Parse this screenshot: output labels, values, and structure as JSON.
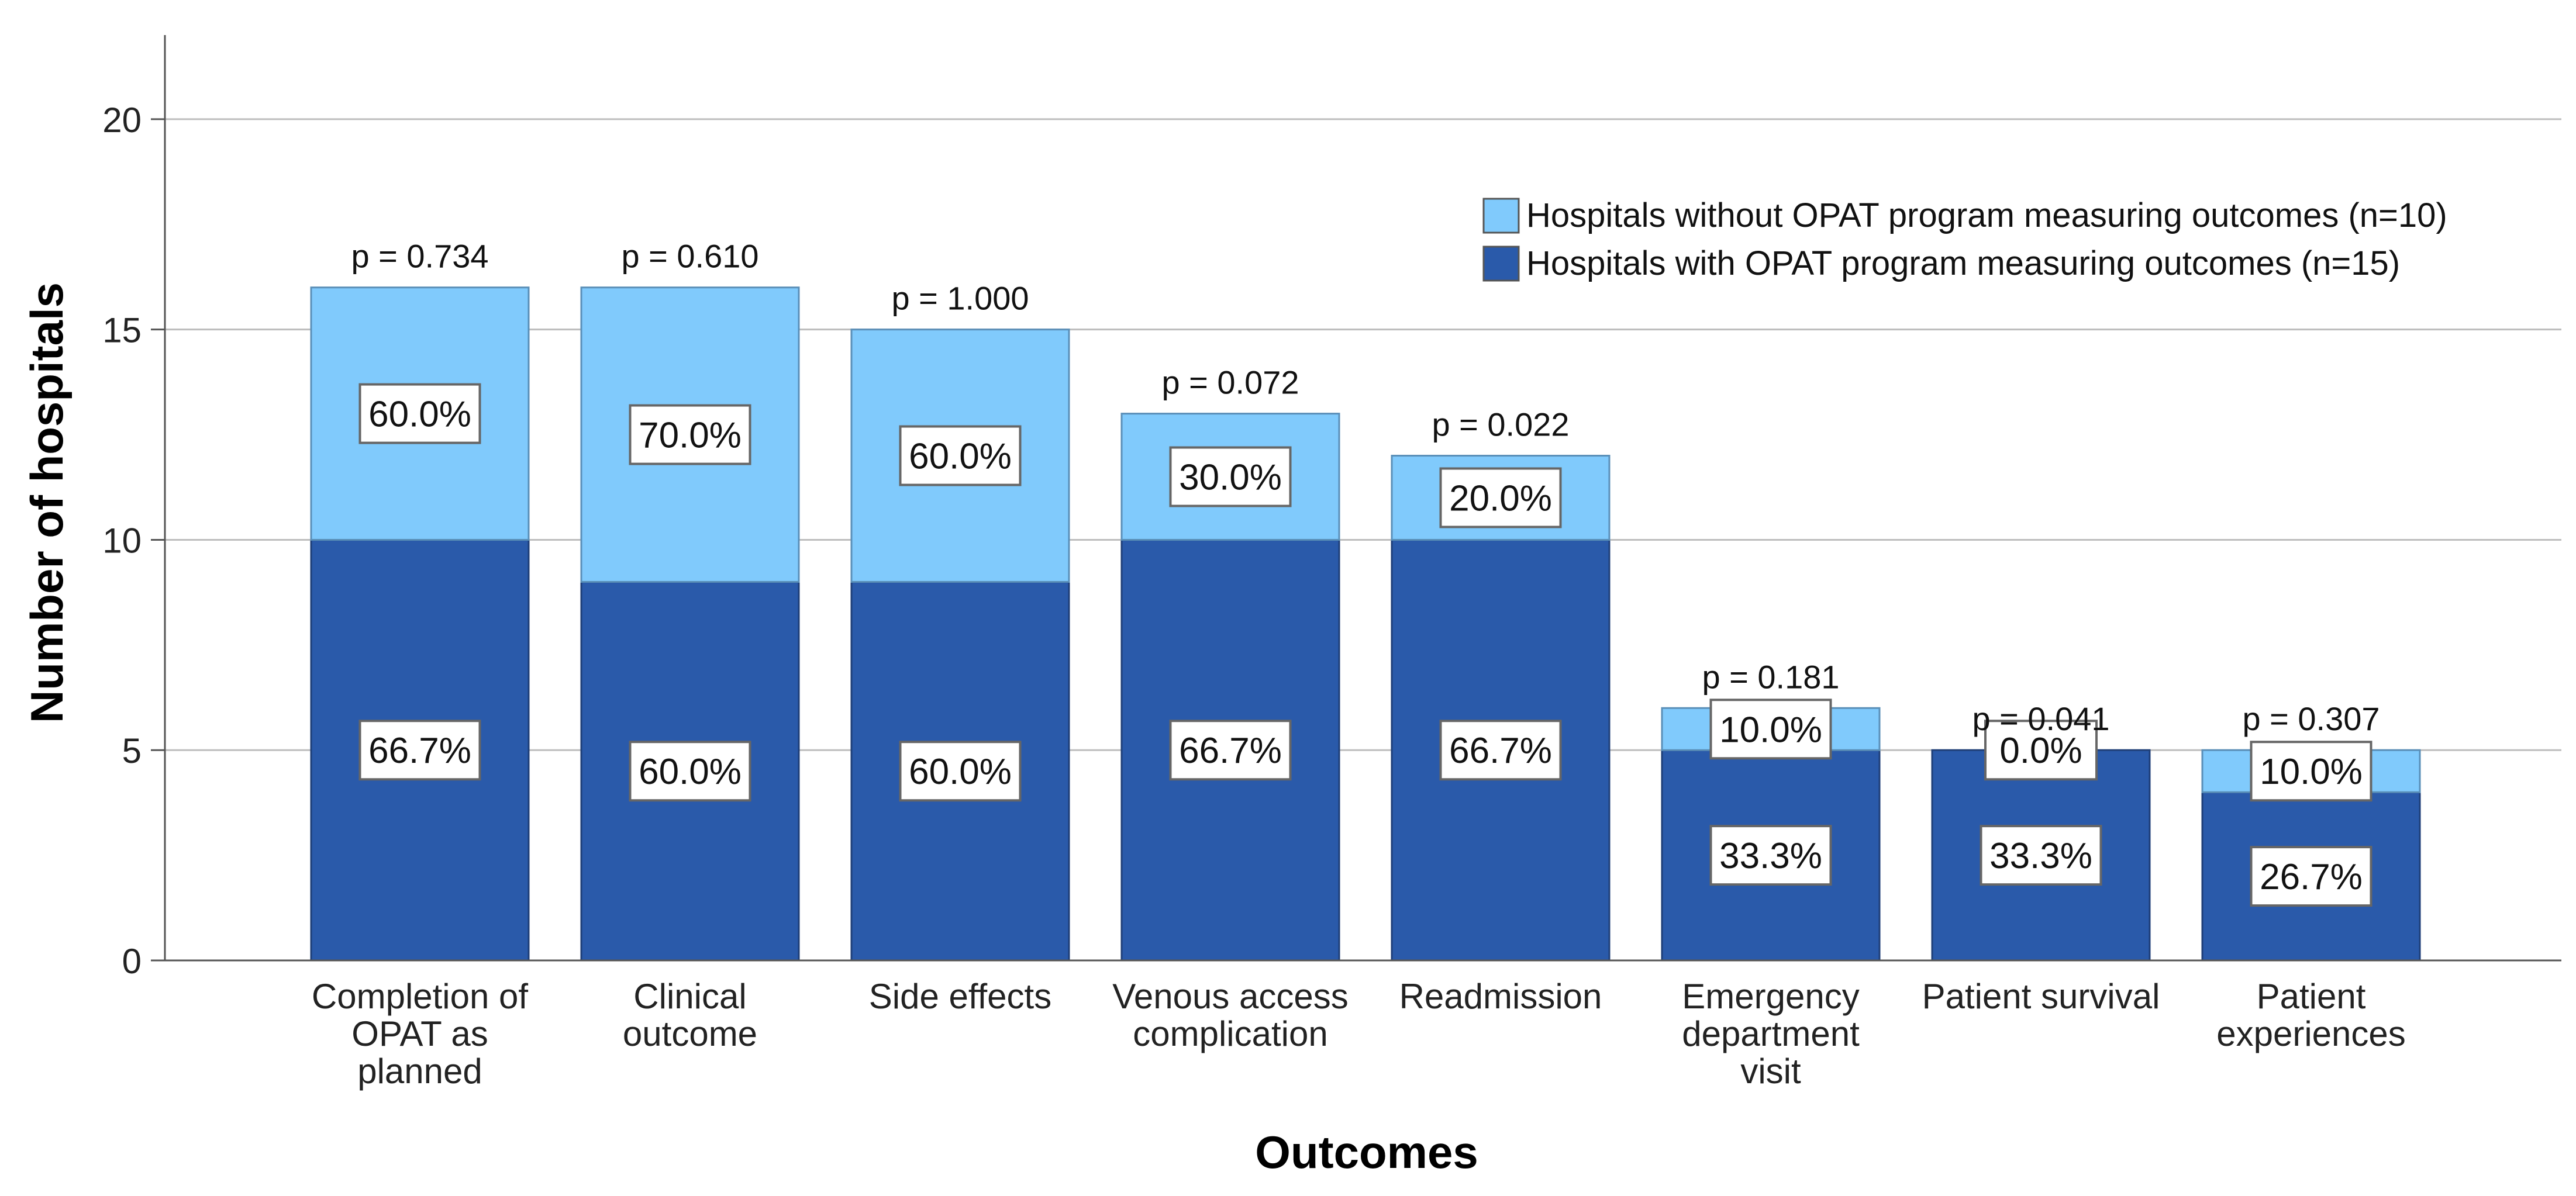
{
  "chart_data": {
    "type": "bar",
    "stacked": true,
    "title": "",
    "xlabel": "Outcomes",
    "ylabel": "Number of hospitals",
    "ylim": [
      0,
      22
    ],
    "yticks": [
      0,
      5,
      10,
      15,
      20
    ],
    "grid": true,
    "legend_position": "top-right",
    "categories": [
      [
        "Completion of",
        "OPAT as",
        "planned"
      ],
      [
        "Clinical",
        "outcome"
      ],
      [
        "Side effects"
      ],
      [
        "Venous access",
        "complication"
      ],
      [
        "Readmission"
      ],
      [
        "Emergency",
        "department",
        "visit"
      ],
      [
        "Patient survival"
      ],
      [
        "Patient",
        "experiences"
      ]
    ],
    "series": [
      {
        "name": "Hospitals with OPAT program measuring outcomes (n=15)",
        "color": "#2a5aaa",
        "values": [
          10,
          9,
          9,
          10,
          10,
          5,
          5,
          4
        ],
        "labels": [
          "66.7%",
          "60.0%",
          "60.0%",
          "66.7%",
          "66.7%",
          "33.3%",
          "33.3%",
          "26.7%"
        ]
      },
      {
        "name": "Hospitals without OPAT program measuring outcomes (n=10)",
        "color": "#80cafc",
        "values": [
          6,
          7,
          6,
          3,
          2,
          1,
          0,
          1
        ],
        "labels": [
          "60.0%",
          "70.0%",
          "60.0%",
          "30.0%",
          "20.0%",
          "10.0%",
          "0.0%",
          "10.0%"
        ]
      }
    ],
    "annotations": [
      "p = 0.734",
      "p = 0.610",
      "p = 1.000",
      "p = 0.072",
      "p = 0.022",
      "p = 0.181",
      "p = 0.041",
      "p = 0.307"
    ]
  }
}
